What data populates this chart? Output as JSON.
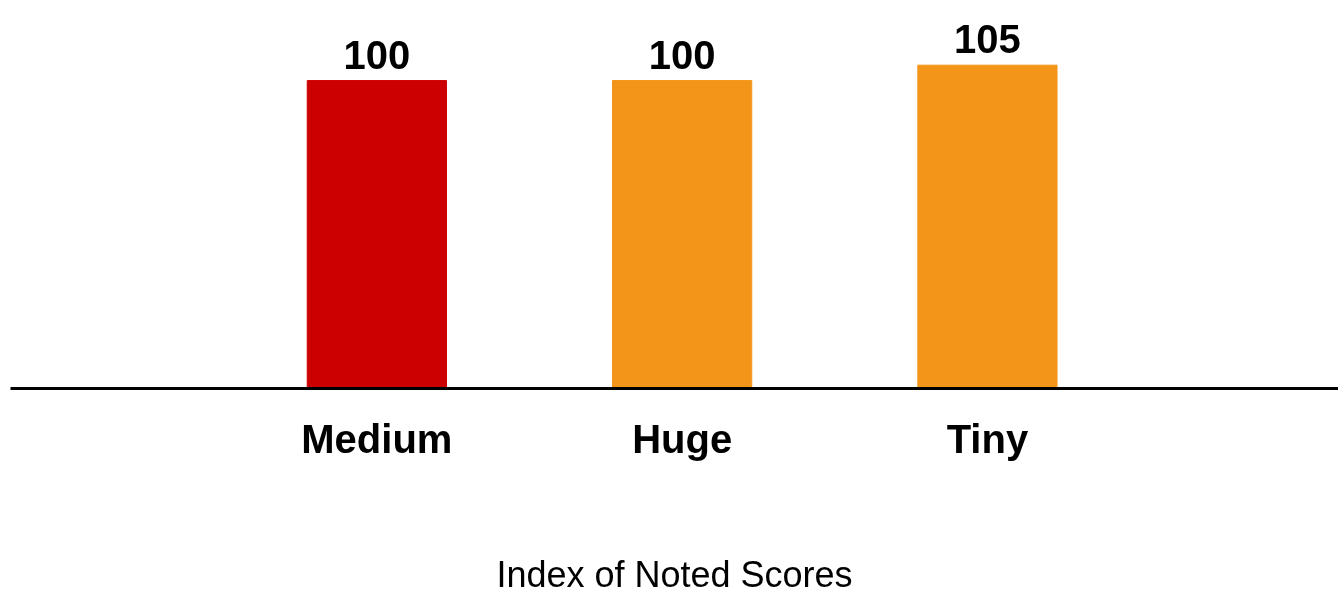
{
  "chart_data": {
    "type": "bar",
    "xlabel": "Index of Noted Scores",
    "categories": [
      "Medium",
      "Huge",
      "Tiny"
    ],
    "values": [
      100,
      100,
      105
    ],
    "colors": [
      "#cc0000",
      "#f39519",
      "#f39519"
    ],
    "data_labels": true
  }
}
